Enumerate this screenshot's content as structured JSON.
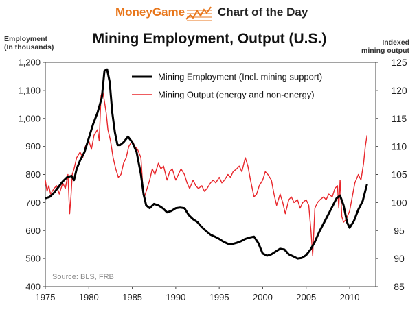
{
  "header": {
    "brand_left": "MoneyGame",
    "brand_right": "Chart of the Day",
    "brand_color": "#e8761b"
  },
  "chart_data": {
    "type": "line",
    "title": "Mining Employment, Output (U.S.)",
    "left_axis_label": "Employment\n(In thousands)",
    "right_axis_label": "Indexed\nmining output",
    "source": "Source: BLS, FRB",
    "xlim": [
      1975,
      2013
    ],
    "x_ticks": [
      1975,
      1980,
      1985,
      1990,
      1995,
      2000,
      2005,
      2010
    ],
    "ylim_left": [
      400,
      1200
    ],
    "y_ticks_left": [
      "400",
      "500",
      "600",
      "700",
      "800",
      "900",
      "1,000",
      "1,100",
      "1,200"
    ],
    "ylim_right": [
      85,
      125
    ],
    "y_ticks_right": [
      "85",
      "90",
      "95",
      "100",
      "105",
      "110",
      "115",
      "120",
      "125"
    ],
    "legend_position": "top-center",
    "grid": false,
    "series": [
      {
        "name": "Mining Employment (Incl. mining support)",
        "axis": "left",
        "color": "#000000",
        "x": [
          1975.0,
          1975.5,
          1976.0,
          1976.5,
          1977.0,
          1977.5,
          1978.0,
          1978.3,
          1978.6,
          1979.0,
          1979.5,
          1980.0,
          1980.5,
          1981.0,
          1981.5,
          1981.8,
          1982.1,
          1982.4,
          1982.7,
          1983.0,
          1983.3,
          1983.6,
          1984.0,
          1984.5,
          1985.0,
          1985.5,
          1986.0,
          1986.3,
          1986.6,
          1987.0,
          1987.5,
          1988.0,
          1988.5,
          1989.0,
          1989.5,
          1990.0,
          1990.5,
          1991.0,
          1991.5,
          1992.0,
          1992.5,
          1993.0,
          1993.5,
          1994.0,
          1994.5,
          1995.0,
          1995.5,
          1996.0,
          1996.5,
          1997.0,
          1997.5,
          1998.0,
          1998.5,
          1999.0,
          1999.5,
          2000.0,
          2000.5,
          2001.0,
          2001.5,
          2002.0,
          2002.5,
          2003.0,
          2003.5,
          2004.0,
          2004.5,
          2005.0,
          2005.5,
          2006.0,
          2006.5,
          2007.0,
          2007.5,
          2008.0,
          2008.5,
          2008.9,
          2009.3,
          2009.7,
          2010.0,
          2010.5,
          2011.0,
          2011.5,
          2012.0
        ],
        "y": [
          715,
          720,
          735,
          755,
          775,
          790,
          795,
          780,
          820,
          850,
          880,
          930,
          980,
          1020,
          1075,
          1170,
          1175,
          1130,
          1020,
          950,
          905,
          905,
          915,
          935,
          915,
          880,
          800,
          730,
          690,
          680,
          695,
          690,
          680,
          665,
          670,
          680,
          682,
          680,
          655,
          640,
          630,
          612,
          598,
          585,
          578,
          570,
          560,
          553,
          552,
          556,
          562,
          570,
          575,
          578,
          555,
          518,
          510,
          515,
          525,
          535,
          532,
          515,
          508,
          500,
          502,
          512,
          532,
          560,
          595,
          625,
          655,
          685,
          715,
          725,
          690,
          630,
          610,
          635,
          675,
          705,
          765
        ]
      },
      {
        "name": "Mining Output (energy and non-energy)",
        "axis": "right",
        "color": "#e8262b",
        "x": [
          1975.0,
          1975.2,
          1975.4,
          1975.6,
          1975.8,
          1976.0,
          1976.3,
          1976.6,
          1977.0,
          1977.3,
          1977.6,
          1977.8,
          1977.95,
          1978.1,
          1978.3,
          1978.6,
          1979.0,
          1979.3,
          1979.6,
          1980.0,
          1980.3,
          1980.6,
          1981.0,
          1981.2,
          1981.4,
          1981.6,
          1981.8,
          1982.0,
          1982.2,
          1982.5,
          1982.8,
          1983.1,
          1983.4,
          1983.7,
          1984.0,
          1984.3,
          1984.6,
          1985.0,
          1985.3,
          1985.6,
          1986.0,
          1986.2,
          1986.4,
          1986.7,
          1987.0,
          1987.3,
          1987.6,
          1988.0,
          1988.3,
          1988.6,
          1989.0,
          1989.3,
          1989.6,
          1990.0,
          1990.3,
          1990.6,
          1991.0,
          1991.3,
          1991.6,
          1992.0,
          1992.3,
          1992.6,
          1993.0,
          1993.3,
          1993.6,
          1994.0,
          1994.3,
          1994.6,
          1995.0,
          1995.3,
          1995.6,
          1996.0,
          1996.3,
          1996.6,
          1997.0,
          1997.3,
          1997.6,
          1998.0,
          1998.3,
          1998.6,
          1999.0,
          1999.3,
          1999.6,
          2000.0,
          2000.3,
          2000.6,
          2001.0,
          2001.3,
          2001.6,
          2002.0,
          2002.3,
          2002.6,
          2003.0,
          2003.3,
          2003.6,
          2004.0,
          2004.3,
          2004.6,
          2005.0,
          2005.3,
          2005.55,
          2005.75,
          2006.0,
          2006.3,
          2006.6,
          2007.0,
          2007.3,
          2007.6,
          2008.0,
          2008.3,
          2008.6,
          2008.75,
          2008.9,
          2009.1,
          2009.3,
          2009.6,
          2010.0,
          2010.3,
          2010.6,
          2011.0,
          2011.3,
          2011.6,
          2011.8,
          2012.0
        ],
        "y": [
          104,
          102,
          103,
          101.5,
          102,
          102.5,
          103,
          101.5,
          103.5,
          102.5,
          105,
          98,
          101,
          105,
          106,
          108,
          109,
          108,
          110,
          111,
          109.5,
          112,
          113,
          111,
          119,
          120,
          118,
          116,
          113,
          111,
          108,
          106,
          104.5,
          105,
          107,
          108,
          110,
          111,
          110,
          109.5,
          108,
          103,
          101,
          102.5,
          104,
          106,
          105,
          107,
          106,
          106.5,
          104,
          105.5,
          106,
          104,
          105,
          106,
          105,
          103.5,
          102.5,
          104,
          103,
          102.5,
          103,
          102,
          102.5,
          103.5,
          104,
          103.5,
          104.5,
          103.5,
          104,
          105,
          104.5,
          105.5,
          106,
          106.5,
          105.5,
          108,
          106.5,
          104,
          101,
          101.5,
          103,
          104,
          105.5,
          105,
          104,
          101.5,
          99.5,
          101.5,
          100,
          98,
          100.5,
          101,
          100,
          100.5,
          99,
          100,
          100.5,
          99.5,
          95,
          90.5,
          99,
          100,
          100.5,
          101,
          100.5,
          101.5,
          101,
          102.5,
          103,
          99,
          104,
          97.5,
          96.5,
          97,
          98.5,
          101,
          103.5,
          105,
          104,
          107,
          110,
          112
        ]
      }
    ]
  }
}
